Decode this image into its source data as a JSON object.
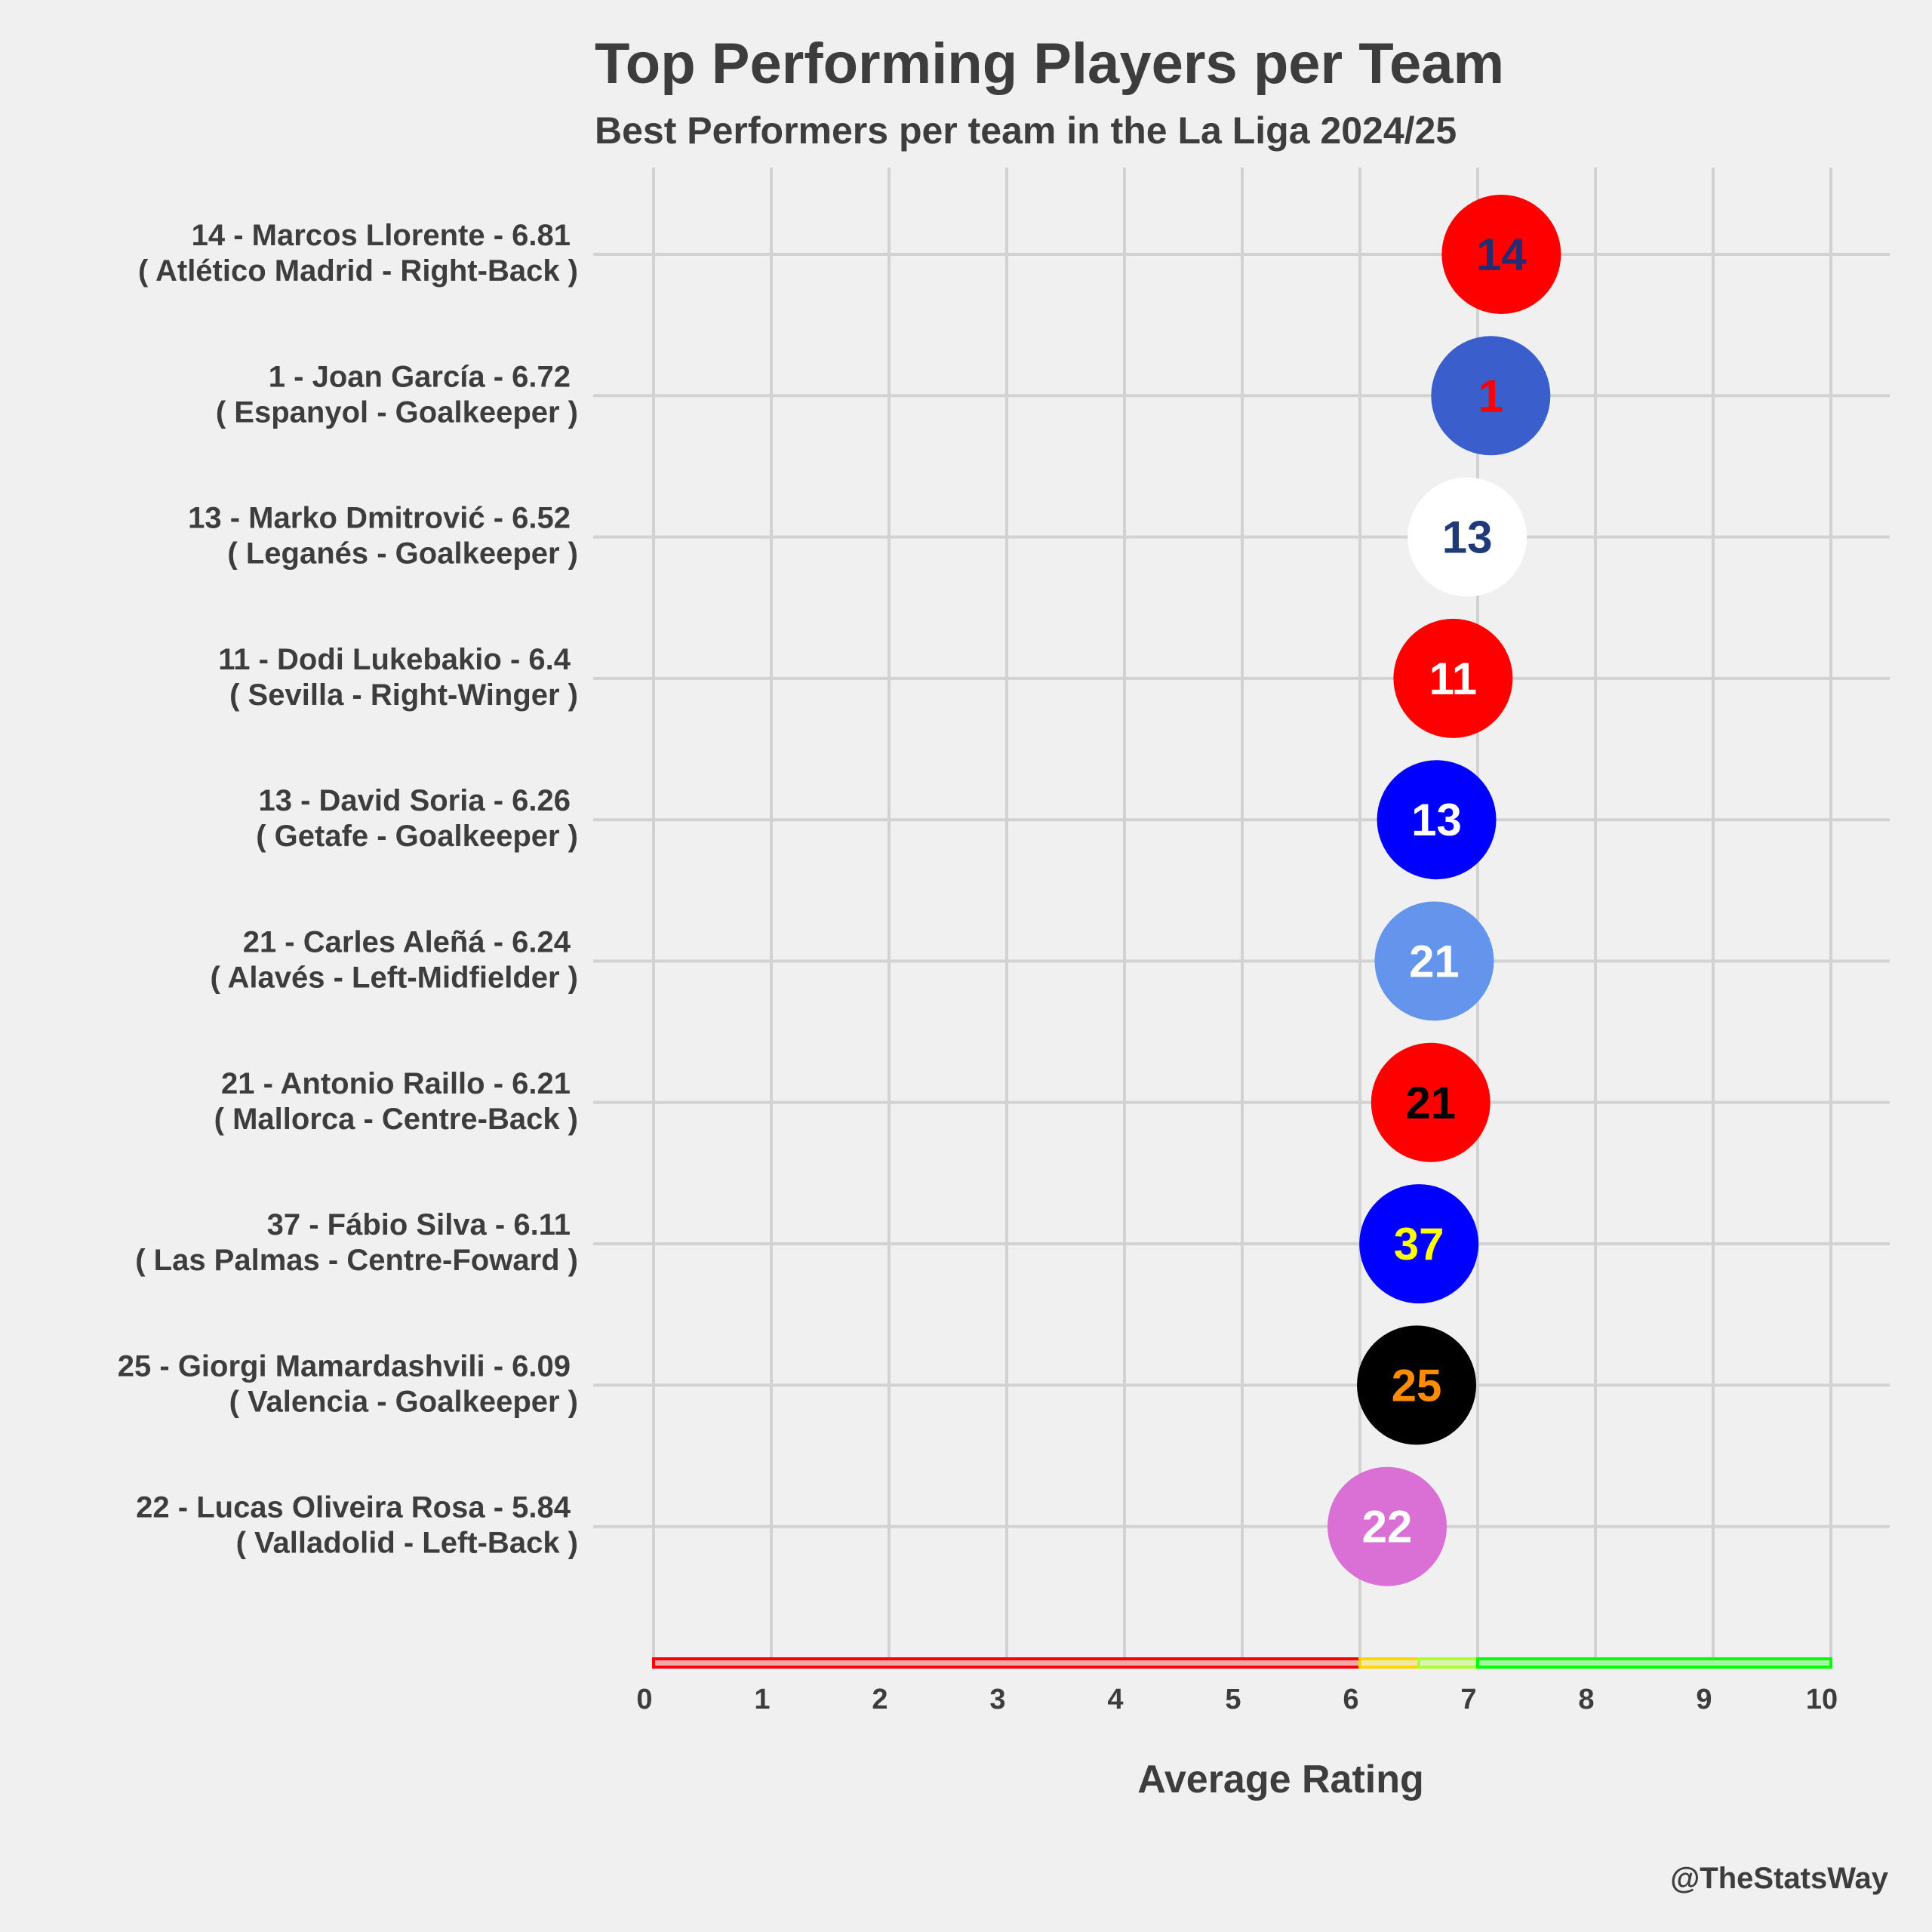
{
  "chart_data": {
    "type": "scatter",
    "title": "Top Performing Players per Team",
    "subtitle": "Best Performers per team in the La Liga 2024/25",
    "xlabel": "Average Rating",
    "xlim": [
      0,
      10
    ],
    "x_ticks": [
      "0",
      "1",
      "2",
      "3",
      "4",
      "5",
      "6",
      "7",
      "8",
      "9",
      "10"
    ],
    "grid": true,
    "credit": "@TheStatsWay",
    "rating_bands": [
      {
        "from": 0,
        "to": 6.0,
        "color": "#ff0000"
      },
      {
        "from": 6.0,
        "to": 6.5,
        "color": "#ffd700"
      },
      {
        "from": 6.5,
        "to": 7.0,
        "color": "#adff2f"
      },
      {
        "from": 7.0,
        "to": 10,
        "color": "#00ff00"
      }
    ],
    "players": [
      {
        "number": "14",
        "label_line1": "14 - Marcos Llorente - 6.81",
        "label_line2": "( Atlético Madrid - Right-Back )",
        "rating": 6.81,
        "circle_color": "#ff0000",
        "text_color": "#262c6e"
      },
      {
        "number": "1",
        "label_line1": "1 - Joan García - 6.72",
        "label_line2": "( Espanyol - Goalkeeper )",
        "rating": 6.72,
        "circle_color": "#3a5fcd",
        "text_color": "#ff0000"
      },
      {
        "number": "13",
        "label_line1": "13 - Marko Dmitrović - 6.52",
        "label_line2": "( Leganés - Goalkeeper )",
        "rating": 6.52,
        "circle_color": "#ffffff",
        "text_color": "#1f3a7a"
      },
      {
        "number": "11",
        "label_line1": "11 - Dodi Lukebakio - 6.4",
        "label_line2": "( Sevilla - Right-Winger )",
        "rating": 6.4,
        "circle_color": "#ff0000",
        "text_color": "#ffffff"
      },
      {
        "number": "13",
        "label_line1": "13 - David Soria - 6.26",
        "label_line2": "( Getafe - Goalkeeper )",
        "rating": 6.26,
        "circle_color": "#0000ff",
        "text_color": "#ffffff"
      },
      {
        "number": "21",
        "label_line1": "21 - Carles Aleñá - 6.24",
        "label_line2": "( Alavés - Left-Midfielder )",
        "rating": 6.24,
        "circle_color": "#6495ed",
        "text_color": "#ffffff"
      },
      {
        "number": "21",
        "label_line1": "21 - Antonio Raillo - 6.21",
        "label_line2": "( Mallorca - Centre-Back )",
        "rating": 6.21,
        "circle_color": "#ff0000",
        "text_color": "#000000"
      },
      {
        "number": "37",
        "label_line1": "37 - Fábio Silva - 6.11",
        "label_line2": "( Las Palmas - Centre-Foward )",
        "rating": 6.11,
        "circle_color": "#0000ff",
        "text_color": "#ffff00"
      },
      {
        "number": "25",
        "label_line1": "25 - Giorgi Mamardashvili - 6.09",
        "label_line2": "( Valencia - Goalkeeper )",
        "rating": 6.09,
        "circle_color": "#000000",
        "text_color": "#ff8c00"
      },
      {
        "number": "22",
        "label_line1": "22 - Lucas Oliveira Rosa - 5.84",
        "label_line2": "( Valladolid - Left-Back )",
        "rating": 5.84,
        "circle_color": "#da70d6",
        "text_color": "#ffffff"
      }
    ]
  }
}
